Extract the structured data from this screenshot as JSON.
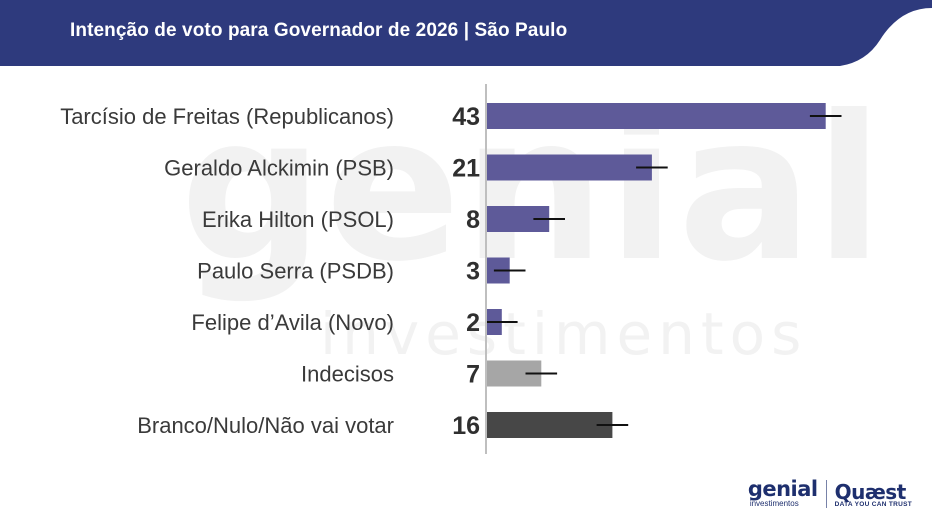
{
  "header": {
    "title": "Intenção de voto para Governador de 2026 | São Paulo",
    "background_color": "#2e3a7d"
  },
  "watermark": {
    "big": "genial",
    "small": "investimentos"
  },
  "chart_data": {
    "type": "bar",
    "orientation": "horizontal",
    "title": "Intenção de voto para Governador de 2026 | São Paulo",
    "xlim": [
      0,
      50
    ],
    "grid": false,
    "categories": [
      "Tarcísio de Freitas (Republicanos)",
      "Geraldo Alckimin (PSB)",
      "Erika Hilton (PSOL)",
      "Paulo Serra (PSDB)",
      "Felipe d’Avila (Novo)",
      "Indecisos",
      "Branco/Nulo/Não vai votar"
    ],
    "values": [
      43,
      21,
      8,
      3,
      2,
      7,
      16
    ],
    "error_margin": 2,
    "colors": [
      "#5e5a99",
      "#5e5a99",
      "#5e5a99",
      "#5e5a99",
      "#5e5a99",
      "#a6a6a6",
      "#474747"
    ]
  },
  "footer": {
    "genial_logo": "genial",
    "genial_sub": "investimentos",
    "quaest_logo": "Quæst",
    "quaest_tagline": "DATA YOU CAN TRUST"
  }
}
